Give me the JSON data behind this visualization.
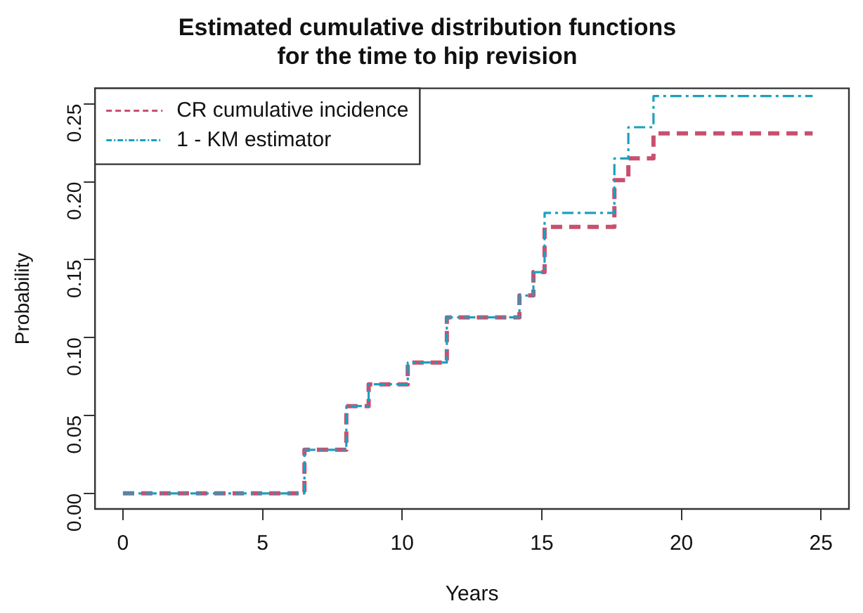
{
  "chart_data": {
    "type": "step",
    "title": "Estimated cumulative distribution functions\nfor the time to hip revision",
    "xlabel": "Years",
    "ylabel": "Probability",
    "x": [
      0,
      6.5,
      8.0,
      8.8,
      10.2,
      11.6,
      14.2,
      14.7,
      15.1,
      17.6,
      18.1,
      19.0,
      24.7
    ],
    "series": [
      {
        "name": "CR cumulative incidence",
        "color": "#c8506e",
        "line_style": "dashed",
        "values": [
          0,
          0.028,
          0.056,
          0.07,
          0.084,
          0.113,
          0.127,
          0.142,
          0.171,
          0.201,
          0.215,
          0.231,
          0.231
        ]
      },
      {
        "name": "1 - KM estimator",
        "color": "#1ba0c0",
        "line_style": "dotted",
        "values": [
          0,
          0.028,
          0.056,
          0.07,
          0.084,
          0.113,
          0.127,
          0.142,
          0.18,
          0.215,
          0.235,
          0.255,
          0.255
        ]
      }
    ],
    "xlim": [
      -1,
      26
    ],
    "xticks": [
      0,
      5,
      10,
      15,
      20,
      25
    ],
    "ylim": [
      -0.01,
      0.26
    ],
    "yticks": [
      {
        "value": 0,
        "label": "0.00"
      },
      {
        "value": 0.05,
        "label": "0.05"
      },
      {
        "value": 0.1,
        "label": "0.10"
      },
      {
        "value": 0.15,
        "label": "0.15"
      },
      {
        "value": 0.2,
        "label": "0.20"
      },
      {
        "value": 0.25,
        "label": "0.25"
      }
    ],
    "grid": false,
    "legend": "top left",
    "marker": "none"
  }
}
